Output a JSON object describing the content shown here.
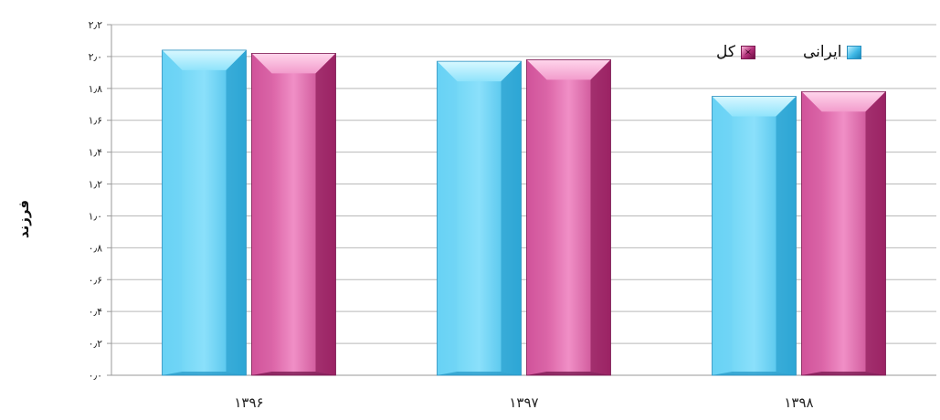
{
  "chart_data": {
    "type": "bar",
    "title": "",
    "xlabel": "",
    "ylabel": "فرزند",
    "categories": [
      "۱۳۹۶",
      "۱۳۹۷",
      "۱۳۹۸"
    ],
    "series": [
      {
        "name": "ایرانی",
        "values": [
          2.04,
          1.97,
          1.75
        ],
        "color": "#3fc2ea"
      },
      {
        "name": "کل",
        "values": [
          2.02,
          1.98,
          1.78
        ],
        "color": "#d7489a"
      }
    ],
    "ylim": [
      0,
      2.2
    ],
    "yticks": [
      "۰٫۰",
      "۰٫۲",
      "۰٫۴",
      "۰٫۶",
      "۰٫۸",
      "۱٫۰",
      "۱٫۲",
      "۱٫۴",
      "۱٫۶",
      "۱٫۸",
      "۲٫۰",
      "۲٫۲"
    ],
    "grid": true,
    "legend": "top-right"
  }
}
